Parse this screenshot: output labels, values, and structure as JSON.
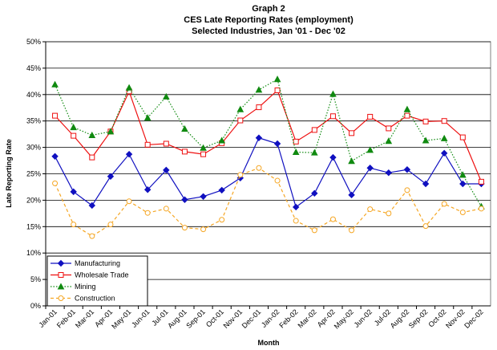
{
  "chart_data": {
    "type": "line",
    "title": "Graph 2",
    "subtitle": [
      "CES Late Reporting Rates (employment)",
      "Selected Industries, Jan '01 - Dec '02"
    ],
    "x_label": "Month",
    "y_label": "Late Reporting Rate",
    "categories": [
      "Jan-01",
      "Feb-01",
      "Mar-01",
      "Apr-01",
      "May-01",
      "Jun-01",
      "Jul-01",
      "Aug-01",
      "Sep-01",
      "Oct-01",
      "Nov-01",
      "Dec-01",
      "Jan-02",
      "Feb-02",
      "Mar-02",
      "Apr-02",
      "May-02",
      "Jun-02",
      "Jul-02",
      "Aug-02",
      "Sep-02",
      "Oct-02",
      "Nov-02",
      "Dec-02"
    ],
    "series": [
      {
        "name": "Manufacturing",
        "color": "#1010c0",
        "marker": "diamond",
        "dash": "solid",
        "values": [
          28.3,
          21.6,
          19.0,
          24.5,
          28.7,
          22.0,
          25.7,
          20.1,
          20.7,
          21.9,
          24.2,
          31.8,
          30.7,
          18.7,
          21.3,
          28.1,
          21.0,
          26.1,
          25.2,
          25.8,
          23.1,
          28.9,
          23.1,
          23.1
        ]
      },
      {
        "name": "Wholesale Trade",
        "color": "#ee1010",
        "marker": "square",
        "dash": "solid",
        "values": [
          36.0,
          32.2,
          28.1,
          33.0,
          40.6,
          30.5,
          30.7,
          29.2,
          28.7,
          30.8,
          35.1,
          37.6,
          40.8,
          31.1,
          33.3,
          35.9,
          32.7,
          35.8,
          33.6,
          36.0,
          34.9,
          35.0,
          31.9,
          23.5
        ]
      },
      {
        "name": "Mining",
        "color": "#108a10",
        "marker": "triangle",
        "dash": "dotted",
        "values": [
          41.9,
          33.8,
          32.3,
          33.0,
          41.3,
          35.6,
          39.6,
          33.5,
          29.9,
          31.3,
          37.2,
          40.9,
          42.9,
          29.1,
          29.0,
          40.1,
          27.4,
          29.5,
          31.2,
          37.2,
          31.3,
          31.7,
          24.8,
          18.8
        ]
      },
      {
        "name": "Construction",
        "color": "#f5a623",
        "marker": "circle",
        "dash": "dashed",
        "values": [
          23.2,
          15.4,
          13.2,
          15.4,
          19.8,
          17.6,
          18.4,
          14.8,
          14.5,
          16.3,
          24.8,
          26.1,
          23.7,
          16.1,
          14.3,
          16.4,
          14.3,
          18.3,
          17.5,
          21.9,
          15.1,
          19.3,
          17.7,
          18.4
        ]
      }
    ],
    "ylim": [
      0,
      50
    ],
    "yticks": [
      {
        "value": 0,
        "label": "0%"
      },
      {
        "value": 5,
        "label": "5%"
      },
      {
        "value": 10,
        "label": "10%"
      },
      {
        "value": 15,
        "label": "15%"
      },
      {
        "value": 20,
        "label": "20%"
      },
      {
        "value": 25,
        "label": "25%"
      },
      {
        "value": 30,
        "label": "30%"
      },
      {
        "value": 35,
        "label": "35%"
      },
      {
        "value": 40,
        "label": "40%"
      },
      {
        "value": 45,
        "label": "45%"
      },
      {
        "value": 50,
        "label": "50%"
      }
    ],
    "grid": true,
    "legend": "lower left"
  }
}
